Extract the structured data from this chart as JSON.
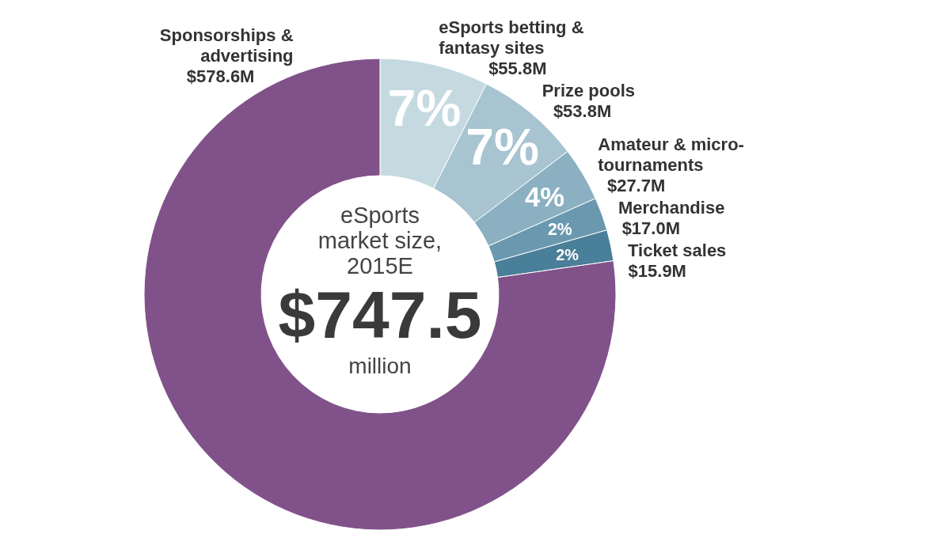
{
  "chart_data": {
    "type": "donut",
    "title": "eSports market size, 2015E",
    "categories": [
      "eSports betting & fantasy sites",
      "Prize pools",
      "Amateur & micro-tournaments",
      "Merchandise",
      "Ticket sales",
      "Sponsorships & advertising"
    ],
    "values": [
      55.8,
      53.8,
      27.7,
      17.0,
      15.9,
      578.6
    ],
    "colors": [
      "#c5d9e1",
      "#a7c4d0",
      "#8bb0c1",
      "#6a99af",
      "#4a7f99",
      "#81528a"
    ],
    "value_labels": [
      "$55.8M",
      "$53.8M",
      "$27.7M",
      "$17.0M",
      "$15.9M",
      "$578.6M"
    ],
    "annotations": [
      "$747.5",
      "million",
      {
        "text": "7%",
        "x": "eSports betting & fantasy sites"
      },
      {
        "text": "7%",
        "x": "Prize pools"
      },
      {
        "text": "4%",
        "x": "Amateur & micro-tournaments"
      },
      {
        "text": "2%",
        "x": "Merchandise"
      },
      {
        "text": "2%",
        "x": "Ticket sales"
      }
    ]
  }
}
